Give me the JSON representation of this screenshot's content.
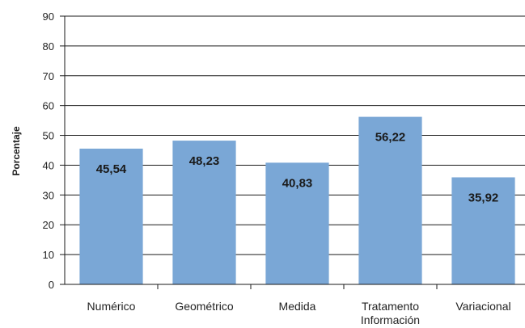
{
  "chart_data": {
    "type": "bar",
    "categories": [
      "Numérico",
      "Geométrico",
      "Medida",
      "Tratamento Información",
      "Variacional"
    ],
    "category_lines": [
      [
        "Numérico"
      ],
      [
        "Geométrico"
      ],
      [
        "Medida"
      ],
      [
        "Tratamento",
        "Información"
      ],
      [
        "Variacional"
      ]
    ],
    "values": [
      45.54,
      48.23,
      40.83,
      56.22,
      35.92
    ],
    "value_labels": [
      "45,54",
      "48,23",
      "40,83",
      "56,22",
      "35,92"
    ],
    "ylabel": "Porcentaje",
    "xlabel": "",
    "title": "",
    "ylim": [
      0,
      90
    ],
    "yticks": [
      0,
      10,
      20,
      30,
      40,
      50,
      60,
      70,
      80,
      90
    ],
    "grid": true,
    "legend": "none",
    "colors": {
      "bar": "#7aa7d6",
      "grid": "#1a1a1a"
    }
  }
}
